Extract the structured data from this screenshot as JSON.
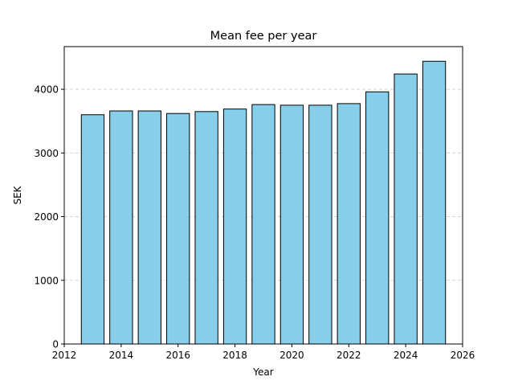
{
  "chart_data": {
    "type": "bar",
    "title": "Mean fee per year",
    "xlabel": "Year",
    "ylabel": "SEK",
    "x": [
      2013,
      2014,
      2015,
      2016,
      2017,
      2018,
      2019,
      2020,
      2021,
      2022,
      2023,
      2024,
      2025
    ],
    "values": [
      3600,
      3660,
      3660,
      3620,
      3650,
      3690,
      3760,
      3750,
      3750,
      3775,
      3960,
      4240,
      4440
    ],
    "xlim": [
      2012,
      2026
    ],
    "ylim": [
      0,
      4670
    ],
    "xticks": [
      2012,
      2014,
      2016,
      2018,
      2020,
      2022,
      2024,
      2026
    ],
    "yticks": [
      0,
      1000,
      2000,
      3000,
      4000
    ],
    "grid": "y-dashed",
    "bar_color": "#87CEEB",
    "edge_color": "#000000",
    "grid_color": "#cccccc"
  }
}
